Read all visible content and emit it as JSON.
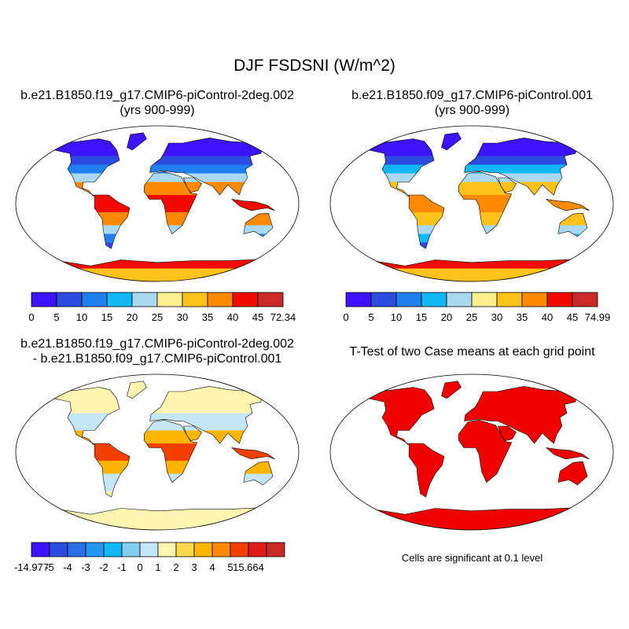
{
  "figure": {
    "title": "DJF FSDSNI (W/m^2)",
    "panel1": {
      "line1": "b.e21.B1850.f19_g17.CMIP6-piControl-2deg.002",
      "line2": "(yrs 900-999)"
    },
    "panel2": {
      "line1": "b.e21.B1850.f09_g17.CMIP6-piControl.001",
      "line2": "(yrs 900-999)"
    },
    "panel3": {
      "line1": "b.e21.B1850.f19_g17.CMIP6-piControl-2deg.002",
      "line2": "- b.e21.B1850.f09_g17.CMIP6-piControl.001"
    },
    "panel4": {
      "line1": "T-Test of two Case means at each grid point"
    },
    "significance_note": "Cells are significant at 0.1 level"
  },
  "colorbars": {
    "case": {
      "colors": [
        "#3c14ff",
        "#2e4be0",
        "#2180f0",
        "#12b7f5",
        "#a9d8f0",
        "#ffef8e",
        "#ffc21a",
        "#ff8a00",
        "#f20a00",
        "#cc2a2a"
      ],
      "labels1": [
        "0",
        "5",
        "10",
        "15",
        "20",
        "25",
        "30",
        "35",
        "40",
        "45",
        "72.34"
      ],
      "labels2": [
        "0",
        "5",
        "10",
        "15",
        "20",
        "25",
        "30",
        "35",
        "40",
        "45",
        "74.99"
      ]
    },
    "diff": {
      "colors": [
        "#3c14ff",
        "#2e4be0",
        "#2a6fe8",
        "#2196f3",
        "#12b7f5",
        "#86cdf2",
        "#c5e6f7",
        "#fff5b0",
        "#ffd84d",
        "#ffb400",
        "#ff8a00",
        "#f53f00",
        "#e01a1a",
        "#c82828"
      ],
      "labels": [
        "-14.977",
        "-5",
        "-4",
        "-3",
        "-2",
        "-1",
        "0",
        "1",
        "2",
        "3",
        "4",
        "5",
        "15.664"
      ]
    },
    "significance_color": "#ee0000"
  }
}
